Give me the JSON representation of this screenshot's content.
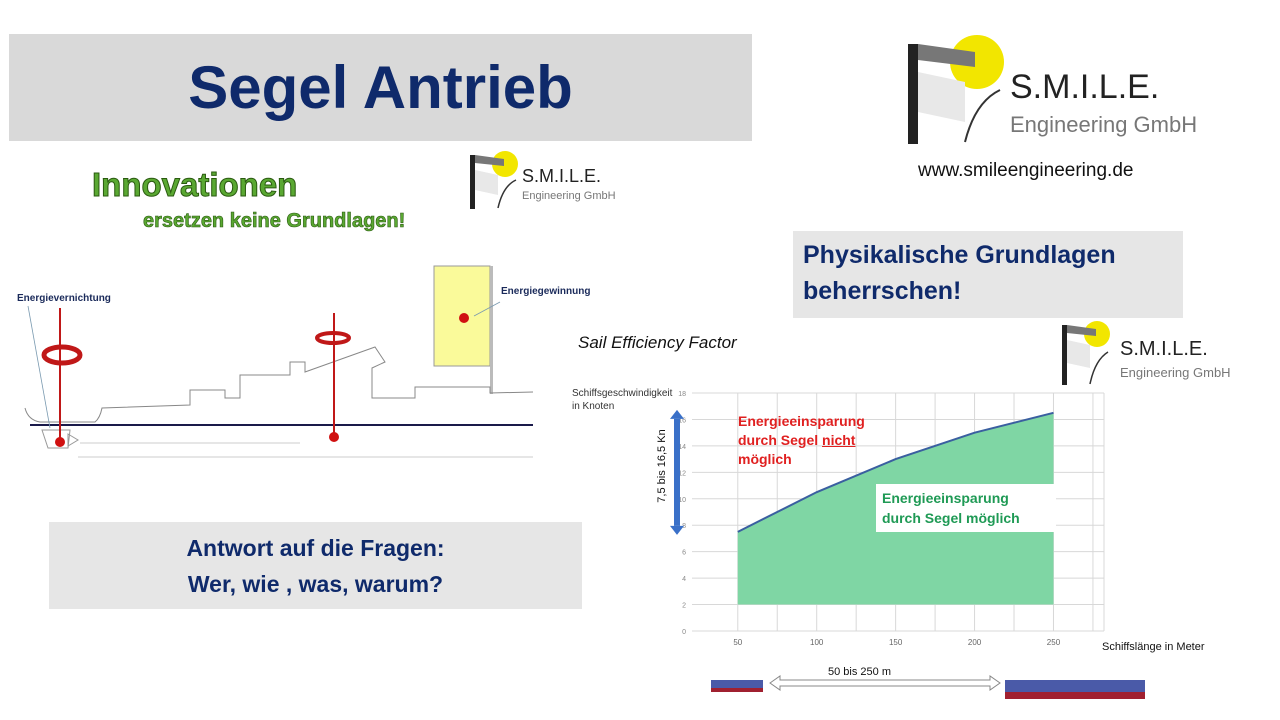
{
  "title": "Segel Antrieb",
  "innovation": {
    "line1": "Innovationen",
    "line2": "ersetzen keine Grundlagen!"
  },
  "logo": {
    "name": "S.M.I.L.E.",
    "sub": "Engineering GmbH",
    "dot_colors": [
      "#2e7bd6",
      "#e02020",
      "#3aa83a",
      "#f0a000"
    ],
    "sun_color": "#f2e600"
  },
  "website": "www.smileengineering.de",
  "physics_box": {
    "line1": "Physikalische Grundlagen",
    "line2": "beherrschen!"
  },
  "answer_box": {
    "line1": "Antwort auf die Fragen:",
    "line2": "Wer, wie , was, warum?"
  },
  "ship_diagram": {
    "label_left": "Energievernichtung",
    "label_right": "Energiegewinnung"
  },
  "sail_efficiency_title": "Sail Efficiency Factor",
  "chart_data": {
    "type": "area",
    "ylabel": "Schiffsgeschwindigkeit in Knoten",
    "ylabel_line1": "Schiffsgeschwindigkeit",
    "ylabel_line2": "in Knoten",
    "xlabel": "Schiffslänge in Meter",
    "x": [
      50,
      100,
      150,
      200,
      250
    ],
    "y": [
      7.5,
      10.5,
      13,
      15,
      16.5
    ],
    "fill_base": 2,
    "xlim": [
      21,
      282
    ],
    "ylim": [
      0,
      18
    ],
    "x_ticks": [
      "50",
      "100",
      "150",
      "200",
      "250"
    ],
    "y_ticks": [
      "0",
      "2",
      "4",
      "6",
      "8",
      "10",
      "12",
      "14",
      "16",
      "18"
    ],
    "grid": true,
    "fill_color": "#7fd6a4",
    "line_color": "#3a5fa0",
    "annotation_above": {
      "line1": "Energieeinsparung",
      "line2a": "durch Segel ",
      "line2b": "nicht",
      "line3": "möglich",
      "color": "#e02020"
    },
    "annotation_below": {
      "line1": "Energieeinsparung",
      "line2": "durch Segel möglich",
      "color": "#1f9a55"
    },
    "speed_range": "7,5 bis 16,5 Kn",
    "length_range": "50 bis 250 m"
  }
}
